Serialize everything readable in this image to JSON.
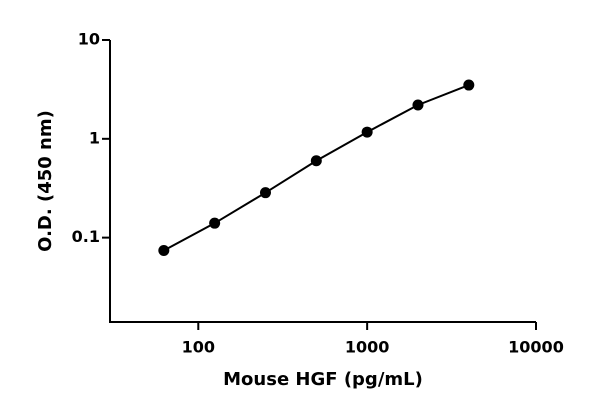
{
  "chart_data": {
    "type": "scatter",
    "x_label": "Mouse HGF (pg/mL)",
    "y_label": "O.D. (450 nm)",
    "x": [
      62.5,
      125,
      250,
      500,
      1000,
      2000,
      4000
    ],
    "values": [
      0.074,
      0.14,
      0.285,
      0.6,
      1.17,
      2.2,
      3.5
    ],
    "color": "#000000",
    "xscale": "log",
    "yscale": "log",
    "xlim": [
      30,
      10000
    ],
    "ylim": [
      0.014,
      10
    ],
    "xticks": [
      100,
      1000,
      10000
    ],
    "yticks": [
      0.1,
      1,
      10
    ],
    "grid": false
  }
}
